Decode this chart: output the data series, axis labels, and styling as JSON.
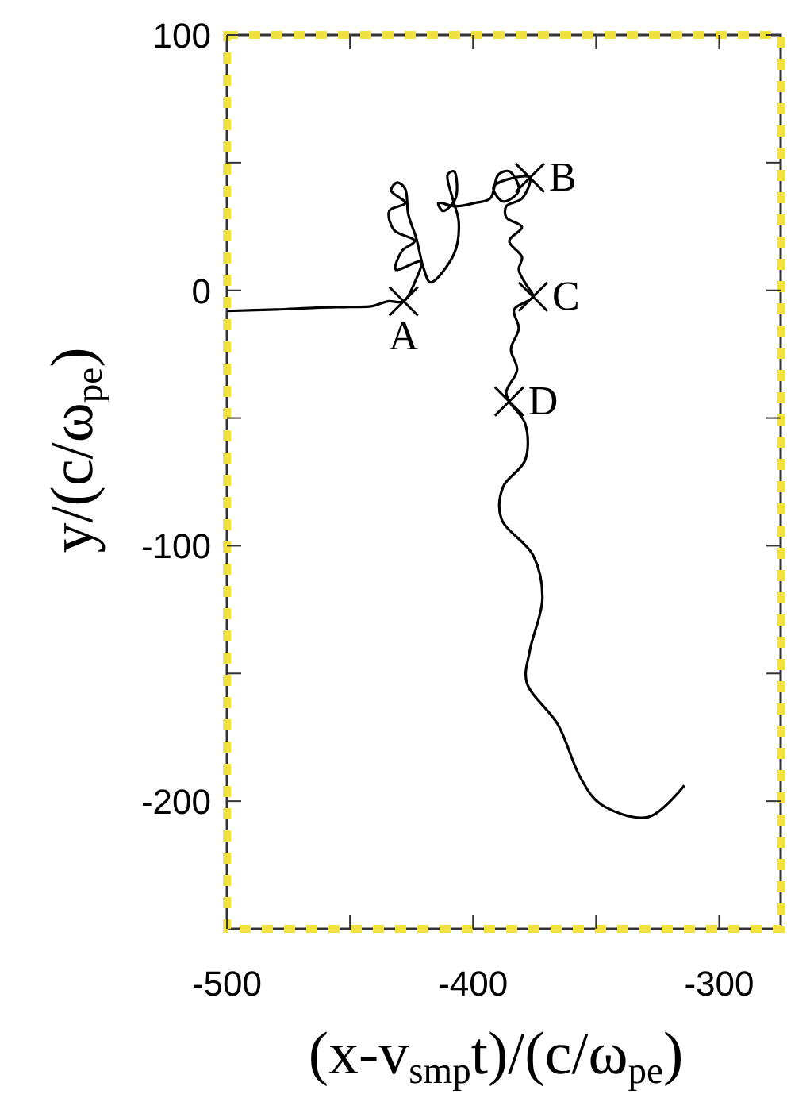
{
  "chart_data": {
    "type": "line",
    "xlabel": "(x-v$_{smp}$t)/(c/ω$_{pe}$)",
    "ylabel": "y/(c/ω$_{pe}$)",
    "xlim": [
      -500,
      -275
    ],
    "ylim": [
      -250,
      100
    ],
    "xticks": [
      -500,
      {
        "value": -450,
        "label": null
      },
      -400,
      {
        "value": -350,
        "label": null
      },
      -300
    ],
    "yticks": [
      100,
      {
        "value": 50,
        "label": null
      },
      0,
      {
        "value": -50,
        "label": null
      },
      -100,
      {
        "value": -150,
        "label": null
      },
      -200
    ],
    "grid": false,
    "series": [
      {
        "color": "#000000",
        "marker": "none",
        "line_style": "solid",
        "x": [
          -500,
          -480,
          -463.5,
          -450,
          -441,
          -434.6,
          -428.2,
          -423.7,
          -421.2,
          -431.4,
          -428.8,
          -423.7,
          -432.1,
          -434,
          -427.6,
          -433.3,
          -430.8,
          -427.6,
          -426.3,
          -423.1,
          -419.9,
          -417.3,
          -407.7,
          -405.8,
          -408.3,
          -410.3,
          -407.7,
          -407.1,
          -412.2,
          -414.1,
          -407.1,
          -399.4,
          -393,
          -389.7,
          -385.3,
          -381.4,
          -387.8,
          -391.7,
          -383.3,
          -376.9,
          -380.1,
          -386.5,
          -386.5,
          -380.1,
          -385.3,
          -380.1,
          -381.4,
          -378.2,
          -375.6,
          -383.3,
          -381.4,
          -384.6,
          -382.1,
          -386.5,
          -385.3,
          -378.8,
          -378.8,
          -387.8,
          -388.5,
          -375.6,
          -371.8,
          -376.9,
          -378.2,
          -365.4,
          -356.4,
          -348.1,
          -328.8,
          -314.1
        ],
        "values": [
          -8.1,
          -7.5,
          -6.8,
          -6.5,
          -6.2,
          -4.3,
          -4.3,
          3.1,
          11.2,
          8.1,
          15.5,
          19.3,
          23.6,
          31.1,
          34.2,
          39.1,
          42.2,
          39.8,
          29.8,
          20.5,
          8.1,
          3.1,
          14.3,
          26.7,
          36,
          45.3,
          46.6,
          36,
          31.1,
          34.2,
          32.9,
          34.2,
          36,
          45.3,
          46.6,
          39.1,
          34.8,
          40.4,
          44.1,
          44.1,
          36,
          32.9,
          28.6,
          24.8,
          19.3,
          13,
          8.1,
          1.9,
          -2.5,
          -7.5,
          -14.9,
          -23,
          -31.1,
          -39.8,
          -43.5,
          -52.2,
          -66.5,
          -77,
          -89.4,
          -103.7,
          -120.5,
          -141,
          -153.4,
          -170.2,
          -190.7,
          -201.2,
          -206.2,
          -193.8
        ]
      },
      {
        "type": "scatter",
        "color": "#000000",
        "marker": "cross",
        "x": [
          -428.2,
          -376.9,
          -375.6,
          -385.3
        ],
        "values": [
          -4.3,
          44.1,
          -2.5,
          -43.5
        ]
      }
    ],
    "annotations": [
      {
        "text": "A",
        "x": -428.2,
        "y": -4.3
      },
      {
        "text": "B",
        "x": -376.9,
        "y": 44.1
      },
      {
        "text": "C",
        "x": -375.6,
        "y": -2.5
      },
      {
        "text": "D",
        "x": -385.3,
        "y": -43.5
      }
    ]
  }
}
